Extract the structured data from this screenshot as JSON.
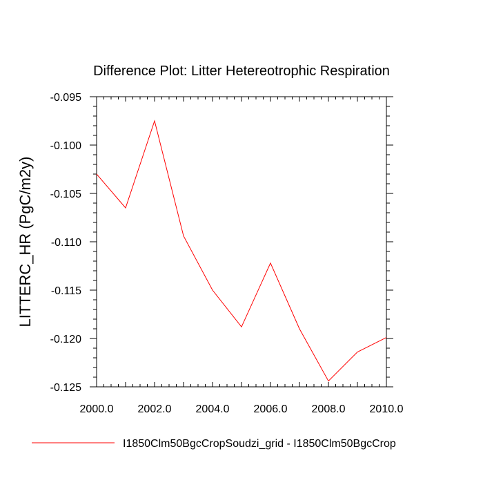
{
  "chart_data": {
    "type": "line",
    "title": "Difference Plot: Litter Hetereotrophic Respiration",
    "xlabel": "",
    "ylabel": "LITTERC_HR  (PgC/m2y)",
    "xlim": [
      2000,
      2010
    ],
    "ylim": [
      -0.125,
      -0.095
    ],
    "x_ticks": [
      "2000.0",
      "2002.0",
      "2004.0",
      "2006.0",
      "2008.0",
      "2010.0"
    ],
    "y_ticks": [
      "-0.095",
      "-0.100",
      "-0.105",
      "-0.110",
      "-0.115",
      "-0.120",
      "-0.125"
    ],
    "grid": false,
    "legend_position": "bottom",
    "series": [
      {
        "name": "I1850Clm50BgcCropSoudzi_grid - I1850Clm50BgcCrop",
        "color": "#ff0000",
        "x": [
          2000,
          2001,
          2002,
          2003,
          2004,
          2005,
          2006,
          2007,
          2008,
          2009,
          2010
        ],
        "y": [
          -0.103,
          -0.1065,
          -0.0975,
          -0.1094,
          -0.115,
          -0.1188,
          -0.1122,
          -0.119,
          -0.1244,
          -0.1214,
          -0.1199
        ]
      }
    ]
  }
}
